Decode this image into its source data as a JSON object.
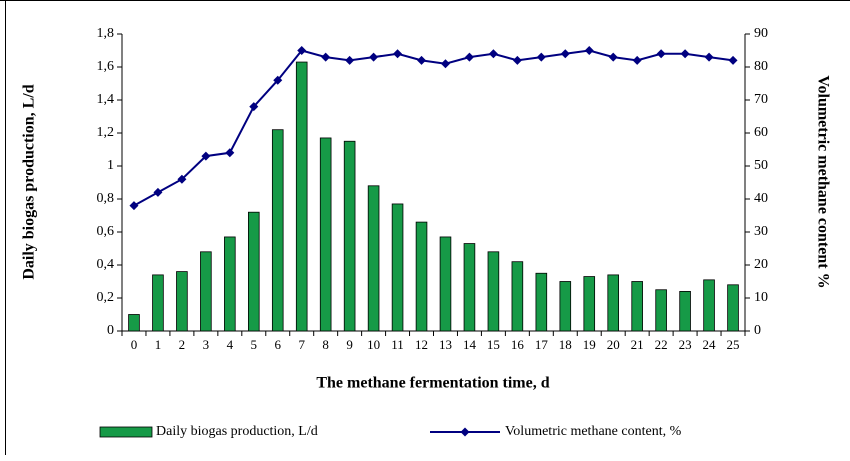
{
  "chart_data": {
    "type": "bar",
    "x_label": "The methane fermentation time, d",
    "y_label": "Daily biogas production, L/d",
    "y2_label": "Volumetric methane content %",
    "categories": [
      "0",
      "1",
      "2",
      "3",
      "4",
      "5",
      "6",
      "7",
      "8",
      "9",
      "10",
      "11",
      "12",
      "13",
      "14",
      "15",
      "16",
      "17",
      "18",
      "19",
      "20",
      "21",
      "22",
      "23",
      "24",
      "25"
    ],
    "series": [
      {
        "name": "Daily biogas production, L/d",
        "type": "bar",
        "color": "#169a47",
        "values": [
          0.1,
          0.34,
          0.36,
          0.48,
          0.57,
          0.72,
          1.22,
          1.63,
          1.17,
          1.15,
          0.88,
          0.77,
          0.66,
          0.57,
          0.53,
          0.48,
          0.42,
          0.35,
          0.3,
          0.33,
          0.34,
          0.3,
          0.25,
          0.24,
          0.31,
          0.28
        ]
      },
      {
        "name": "Volumetric methane content, %",
        "type": "line",
        "axis": "y2",
        "color": "#000080",
        "values": [
          38,
          42,
          46,
          53,
          54,
          68,
          76,
          85,
          83,
          82,
          83,
          84,
          82,
          81,
          83,
          84,
          82,
          83,
          84,
          85,
          83,
          82,
          84,
          84,
          83,
          82
        ]
      }
    ],
    "ylim": [
      0,
      1.8
    ],
    "yticks": [
      0,
      {
        "value": 0.2,
        "label": "0,2"
      },
      {
        "value": 0.4,
        "label": "0,4"
      },
      {
        "value": 0.6,
        "label": "0,6"
      },
      {
        "value": 0.8,
        "label": "0,8"
      },
      1,
      {
        "value": 1.2,
        "label": "1,2"
      },
      {
        "value": 1.4,
        "label": "1,4"
      },
      {
        "value": 1.6,
        "label": "1,6"
      },
      {
        "value": 1.8,
        "label": "1,8"
      }
    ],
    "y2lim": [
      0,
      90
    ],
    "y2ticks": [
      0,
      10,
      20,
      30,
      40,
      50,
      60,
      70,
      80,
      90
    ],
    "grid": false,
    "legend": "bottom"
  }
}
